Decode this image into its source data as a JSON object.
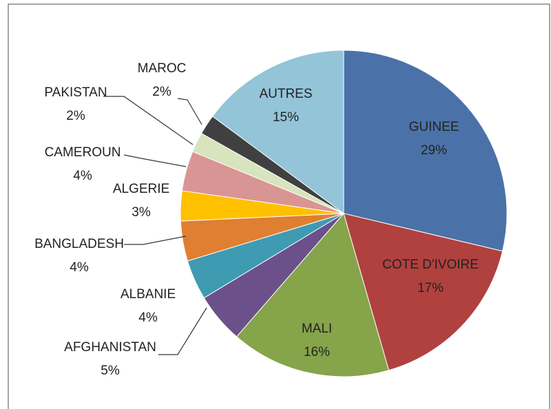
{
  "chart_data": {
    "type": "pie",
    "categories": [
      "GUINEE",
      "COTE D'IVOIRE",
      "MALI",
      "AFGHANISTAN",
      "ALBANIE",
      "BANGLADESH",
      "ALGERIE",
      "CAMEROUN",
      "PAKISTAN",
      "MAROC",
      "AUTRES"
    ],
    "values": [
      29,
      17,
      16,
      5,
      4,
      4,
      3,
      4,
      2,
      2,
      15
    ],
    "value_labels": [
      "29%",
      "17%",
      "16%",
      "5%",
      "4%",
      "4%",
      "3%",
      "4%",
      "2%",
      "2%",
      "15%"
    ],
    "colors": [
      "#4a72a8",
      "#b0413e",
      "#86a44a",
      "#6b508a",
      "#3e9bb2",
      "#e07f32",
      "#ffc000",
      "#d99594",
      "#d7e4bd",
      "#404040",
      "#93c4d8"
    ]
  }
}
